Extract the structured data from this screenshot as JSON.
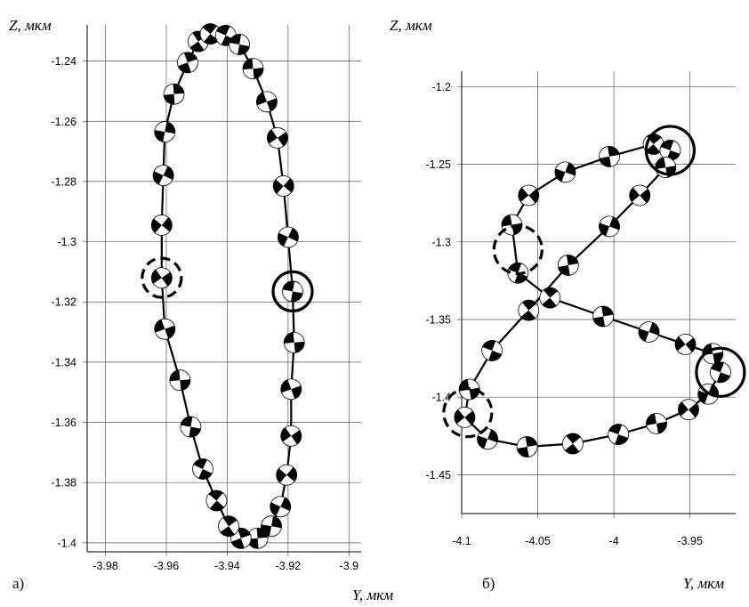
{
  "chart_data": [
    {
      "type": "scatter",
      "panel_label": "а)",
      "xlabel": "Y, мкм",
      "ylabel": "Z, мкм",
      "xlim": [
        -3.986,
        -3.896
      ],
      "ylim": [
        -1.403,
        -1.228
      ],
      "x_ticks": [
        -3.98,
        -3.96,
        -3.94,
        -3.92,
        -3.9
      ],
      "x_tick_labels": [
        "-3.98",
        "-3.96",
        "-3.94",
        "-3.92",
        "-3.9"
      ],
      "y_ticks": [
        -1.24,
        -1.26,
        -1.28,
        -1.3,
        -1.32,
        -1.34,
        -1.36,
        -1.38,
        -1.4
      ],
      "y_tick_labels": [
        "-1.24",
        "-1.26",
        "-1.28",
        "-1.3",
        "-1.32",
        "-1.34",
        "-1.36",
        "-1.38",
        "-1.4"
      ],
      "grid": true,
      "series": [
        {
          "points": [
            {
              "x": -3.9185,
              "y": -1.3165,
              "angle": 10
            },
            {
              "x": -3.918,
              "y": -1.3335,
              "angle": 355
            },
            {
              "x": -3.919,
              "y": -1.349,
              "angle": 340
            },
            {
              "x": -3.919,
              "y": -1.3645,
              "angle": 325
            },
            {
              "x": -3.9205,
              "y": -1.3775,
              "angle": 310
            },
            {
              "x": -3.9225,
              "y": -1.388,
              "angle": 295
            },
            {
              "x": -3.9255,
              "y": -1.3945,
              "angle": 280
            },
            {
              "x": -3.93,
              "y": -1.3985,
              "angle": 265
            },
            {
              "x": -3.9355,
              "y": -1.3985,
              "angle": 250
            },
            {
              "x": -3.9395,
              "y": -1.3945,
              "angle": 235
            },
            {
              "x": -3.9435,
              "y": -1.386,
              "angle": 220
            },
            {
              "x": -3.948,
              "y": -1.3755,
              "angle": 205
            },
            {
              "x": -3.952,
              "y": -1.3615,
              "angle": 190
            },
            {
              "x": -3.9555,
              "y": -1.346,
              "angle": 175
            },
            {
              "x": -3.9605,
              "y": -1.329,
              "angle": 160
            },
            {
              "x": -3.9615,
              "y": -1.312,
              "angle": 145
            },
            {
              "x": -3.9615,
              "y": -1.2945,
              "angle": 130
            },
            {
              "x": -3.961,
              "y": -1.278,
              "angle": 115
            },
            {
              "x": -3.9605,
              "y": -1.2635,
              "angle": 100
            },
            {
              "x": -3.9575,
              "y": -1.251,
              "angle": 85
            },
            {
              "x": -3.953,
              "y": -1.2405,
              "angle": 70
            },
            {
              "x": -3.9495,
              "y": -1.2335,
              "angle": 55
            },
            {
              "x": -3.9455,
              "y": -1.231,
              "angle": 40
            },
            {
              "x": -3.9405,
              "y": -1.2315,
              "angle": 25
            },
            {
              "x": -3.936,
              "y": -1.2345,
              "angle": 10
            },
            {
              "x": -3.9315,
              "y": -1.2425,
              "angle": 355
            },
            {
              "x": -3.927,
              "y": -1.2535,
              "angle": 340
            },
            {
              "x": -3.9235,
              "y": -1.2655,
              "angle": 325
            },
            {
              "x": -3.9215,
              "y": -1.2815,
              "angle": 310
            },
            {
              "x": -3.92,
              "y": -1.2985,
              "angle": 295
            }
          ]
        }
      ],
      "markers": [
        {
          "style": "solid",
          "x": -3.9185,
          "y": -1.3165
        },
        {
          "style": "dashed",
          "x": -3.9615,
          "y": -1.312
        }
      ]
    },
    {
      "type": "scatter",
      "panel_label": "б)",
      "xlabel": "Y, мкм",
      "ylabel": "Z, мкм",
      "xlim": [
        -4.1,
        -3.92
      ],
      "ylim": [
        -1.475,
        -1.19
      ],
      "x_ticks": [
        -4.1,
        -4.05,
        -4.0,
        -3.95
      ],
      "x_tick_labels": [
        "-4.1",
        "-4.05",
        "-4",
        "-3.95"
      ],
      "y_ticks": [
        -1.2,
        -1.25,
        -1.3,
        -1.35,
        -1.4,
        -1.45
      ],
      "y_tick_labels": [
        "-1.2",
        "-1.25",
        "-1.3",
        "-1.35",
        "-1.4",
        "-1.45"
      ],
      "grid": true,
      "series": [
        {
          "points": [
            {
              "x": -3.93,
              "y": -1.384,
              "angle": 200
            },
            {
              "x": -3.935,
              "y": -1.372,
              "angle": 170
            },
            {
              "x": -3.953,
              "y": -1.366,
              "angle": 140
            },
            {
              "x": -3.977,
              "y": -1.358,
              "angle": 110
            },
            {
              "x": -4.007,
              "y": -1.348,
              "angle": 80
            },
            {
              "x": -4.042,
              "y": -1.336,
              "angle": 50
            },
            {
              "x": -4.063,
              "y": -1.32,
              "angle": 20
            },
            {
              "x": -4.067,
              "y": -1.289,
              "angle": 350
            },
            {
              "x": -4.056,
              "y": -1.27,
              "angle": 320
            },
            {
              "x": -4.032,
              "y": -1.255,
              "angle": 290
            },
            {
              "x": -4.003,
              "y": -1.245,
              "angle": 260
            },
            {
              "x": -3.974,
              "y": -1.237,
              "angle": 230
            },
            {
              "x": -3.963,
              "y": -1.241,
              "angle": 200
            },
            {
              "x": -3.966,
              "y": -1.252,
              "angle": 170
            },
            {
              "x": -3.983,
              "y": -1.27,
              "angle": 140
            },
            {
              "x": -4.003,
              "y": -1.29,
              "angle": 110
            },
            {
              "x": -4.03,
              "y": -1.315,
              "angle": 80
            },
            {
              "x": -4.056,
              "y": -1.344,
              "angle": 50
            },
            {
              "x": -4.08,
              "y": -1.37,
              "angle": 20
            },
            {
              "x": -4.095,
              "y": -1.395,
              "angle": 350
            },
            {
              "x": -4.098,
              "y": -1.413,
              "angle": 320
            },
            {
              "x": -4.083,
              "y": -1.427,
              "angle": 290
            },
            {
              "x": -4.057,
              "y": -1.432,
              "angle": 260
            },
            {
              "x": -4.027,
              "y": -1.43,
              "angle": 230
            },
            {
              "x": -3.997,
              "y": -1.424,
              "angle": 200
            },
            {
              "x": -3.972,
              "y": -1.417,
              "angle": 170
            },
            {
              "x": -3.951,
              "y": -1.408,
              "angle": 140
            },
            {
              "x": -3.938,
              "y": -1.398,
              "angle": 110
            }
          ]
        }
      ],
      "markers": [
        {
          "style": "solid",
          "x": -3.963,
          "y": -1.241
        },
        {
          "style": "solid",
          "x": -3.93,
          "y": -1.384
        },
        {
          "style": "dashed",
          "x": -4.063,
          "y": -1.305
        },
        {
          "style": "dashed",
          "x": -4.096,
          "y": -1.41
        }
      ]
    }
  ]
}
